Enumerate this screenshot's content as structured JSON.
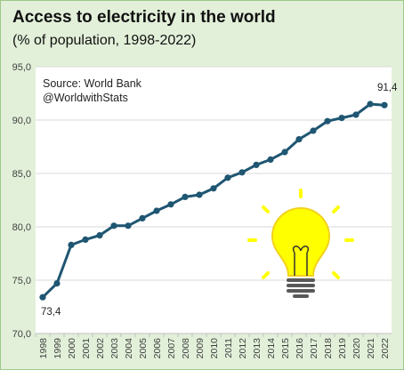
{
  "page": {
    "title": "Access to electricity in the world",
    "subtitle": "(% of population, 1998-2022)"
  },
  "colors": {
    "background": "#e2f0d9",
    "plot_area": "#ffffff",
    "line": "#1f5672",
    "bulb": "#ffff00",
    "bulb_outline": "#f2d21e",
    "bulb_base": "#595959"
  },
  "chart_data": {
    "type": "line",
    "title": "Access to electricity in the world",
    "subtitle": "(% of population, 1998-2022)",
    "xlabel": "",
    "ylabel": "",
    "categories": [
      "1998",
      "1999",
      "2000",
      "2001",
      "2002",
      "2003",
      "2004",
      "2005",
      "2006",
      "2007",
      "2008",
      "2009",
      "2010",
      "2011",
      "2012",
      "2013",
      "2014",
      "2015",
      "2016",
      "2017",
      "2018",
      "2019",
      "2020",
      "2021",
      "2022"
    ],
    "series": [
      {
        "values": [
          73.4,
          74.7,
          78.3,
          78.8,
          79.2,
          80.1,
          80.1,
          80.8,
          81.5,
          82.1,
          82.8,
          83.0,
          83.6,
          84.6,
          85.1,
          85.8,
          86.3,
          87.0,
          88.2,
          89.0,
          89.9,
          90.2,
          90.5,
          91.5,
          91.4
        ]
      }
    ],
    "ylim": [
      70,
      95
    ],
    "yticks": [
      "70,0",
      "75,0",
      "80,0",
      "85,0",
      "90,0",
      "95,0"
    ],
    "ytick_values": [
      70,
      75,
      80,
      85,
      90,
      95
    ],
    "grid": "horizontal",
    "data_labels": [
      {
        "category": "1998",
        "text": "73,4"
      },
      {
        "category": "2022",
        "text": "91,4"
      }
    ],
    "annotations": [
      "Source: World Bank",
      "@WorldwithStats"
    ],
    "legend": "none"
  }
}
